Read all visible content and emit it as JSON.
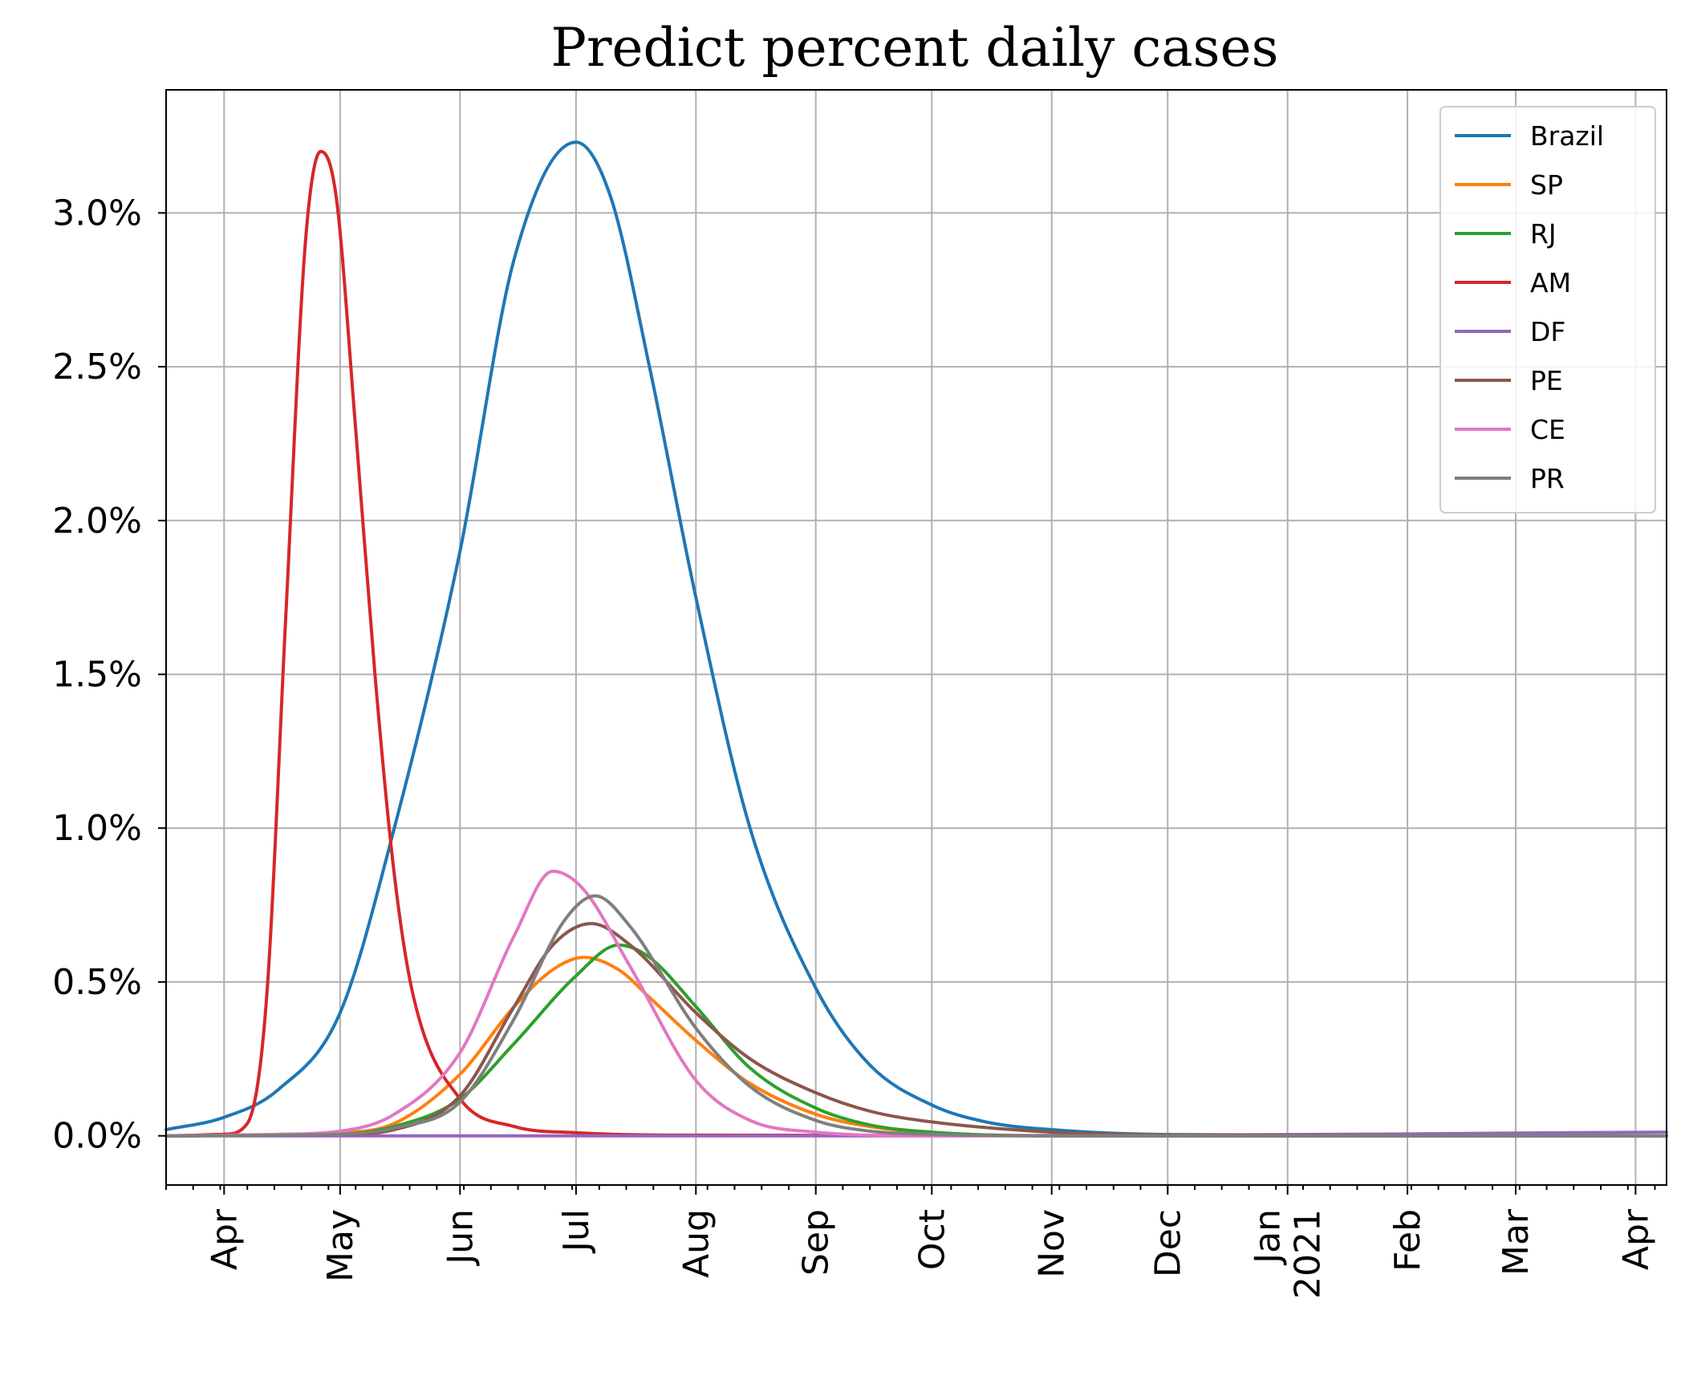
{
  "chart_data": {
    "type": "line",
    "title": "Predict percent daily cases",
    "xlabel": "",
    "ylabel": "",
    "x_axis": {
      "type": "date",
      "range": [
        "2020-03-17",
        "2021-04-09"
      ],
      "ticks": [
        {
          "date": "2020-04-01",
          "label": "Apr"
        },
        {
          "date": "2020-05-01",
          "label": "May"
        },
        {
          "date": "2020-06-01",
          "label": "Jun"
        },
        {
          "date": "2020-07-01",
          "label": "Jul"
        },
        {
          "date": "2020-08-01",
          "label": "Aug"
        },
        {
          "date": "2020-09-01",
          "label": "Sep"
        },
        {
          "date": "2020-10-01",
          "label": "Oct"
        },
        {
          "date": "2020-11-01",
          "label": "Nov"
        },
        {
          "date": "2020-12-01",
          "label": "Dec"
        },
        {
          "date": "2021-01-01",
          "label": "Jan\n2021"
        },
        {
          "date": "2021-02-01",
          "label": "Feb"
        },
        {
          "date": "2021-03-01",
          "label": "Mar"
        },
        {
          "date": "2021-04-01",
          "label": "Apr"
        }
      ]
    },
    "y_axis": {
      "range": [
        -0.16,
        3.4
      ],
      "ticks": [
        0.0,
        0.5,
        1.0,
        1.5,
        2.0,
        2.5,
        3.0
      ],
      "tick_labels": [
        "0.0%",
        "0.5%",
        "1.0%",
        "1.5%",
        "2.0%",
        "2.5%",
        "3.0%"
      ]
    },
    "grid": true,
    "legend": "top-right",
    "series": [
      {
        "name": "Brazil",
        "color": "#1f77b4",
        "points": [
          [
            "2020-03-17",
            0.02
          ],
          [
            "2020-04-01",
            0.06
          ],
          [
            "2020-04-15",
            0.15
          ],
          [
            "2020-05-01",
            0.4
          ],
          [
            "2020-05-15",
            1.0
          ],
          [
            "2020-06-01",
            1.9
          ],
          [
            "2020-06-15",
            2.85
          ],
          [
            "2020-07-01",
            3.23
          ],
          [
            "2020-07-10",
            3.05
          ],
          [
            "2020-07-20",
            2.5
          ],
          [
            "2020-08-01",
            1.75
          ],
          [
            "2020-08-15",
            1.0
          ],
          [
            "2020-09-01",
            0.48
          ],
          [
            "2020-09-15",
            0.23
          ],
          [
            "2020-10-01",
            0.1
          ],
          [
            "2020-10-15",
            0.045
          ],
          [
            "2020-11-01",
            0.02
          ],
          [
            "2020-12-01",
            0.004
          ],
          [
            "2021-04-09",
            0.0
          ]
        ]
      },
      {
        "name": "SP",
        "color": "#ff7f0e",
        "points": [
          [
            "2020-03-17",
            0.0
          ],
          [
            "2020-05-01",
            0.01
          ],
          [
            "2020-05-15",
            0.04
          ],
          [
            "2020-06-01",
            0.2
          ],
          [
            "2020-06-15",
            0.42
          ],
          [
            "2020-06-25",
            0.54
          ],
          [
            "2020-07-03",
            0.58
          ],
          [
            "2020-07-12",
            0.54
          ],
          [
            "2020-07-20",
            0.45
          ],
          [
            "2020-08-01",
            0.31
          ],
          [
            "2020-08-15",
            0.17
          ],
          [
            "2020-09-01",
            0.07
          ],
          [
            "2020-09-15",
            0.03
          ],
          [
            "2020-10-01",
            0.01
          ],
          [
            "2020-11-01",
            0.0
          ],
          [
            "2021-04-09",
            0.0
          ]
        ]
      },
      {
        "name": "RJ",
        "color": "#2ca02c",
        "points": [
          [
            "2020-03-17",
            0.0
          ],
          [
            "2020-05-01",
            0.005
          ],
          [
            "2020-05-15",
            0.03
          ],
          [
            "2020-06-01",
            0.12
          ],
          [
            "2020-06-15",
            0.3
          ],
          [
            "2020-07-01",
            0.52
          ],
          [
            "2020-07-12",
            0.62
          ],
          [
            "2020-07-20",
            0.58
          ],
          [
            "2020-08-01",
            0.42
          ],
          [
            "2020-08-15",
            0.22
          ],
          [
            "2020-09-01",
            0.09
          ],
          [
            "2020-09-15",
            0.035
          ],
          [
            "2020-10-01",
            0.012
          ],
          [
            "2020-11-01",
            0.0
          ],
          [
            "2021-04-09",
            0.0
          ]
        ]
      },
      {
        "name": "AM",
        "color": "#d62728",
        "points": [
          [
            "2020-03-17",
            0.0
          ],
          [
            "2020-04-01",
            0.005
          ],
          [
            "2020-04-07",
            0.04
          ],
          [
            "2020-04-12",
            0.45
          ],
          [
            "2020-04-17",
            1.7
          ],
          [
            "2020-04-22",
            2.9
          ],
          [
            "2020-04-26",
            3.2
          ],
          [
            "2020-04-30",
            3.05
          ],
          [
            "2020-05-05",
            2.3
          ],
          [
            "2020-05-10",
            1.5
          ],
          [
            "2020-05-15",
            0.85
          ],
          [
            "2020-05-20",
            0.45
          ],
          [
            "2020-06-01",
            0.12
          ],
          [
            "2020-06-15",
            0.03
          ],
          [
            "2020-07-01",
            0.01
          ],
          [
            "2020-08-01",
            0.002
          ],
          [
            "2021-04-09",
            0.0
          ]
        ]
      },
      {
        "name": "DF",
        "color": "#9467bd",
        "points": [
          [
            "2020-03-17",
            0.0
          ],
          [
            "2020-10-01",
            0.0
          ],
          [
            "2020-12-01",
            0.002
          ],
          [
            "2021-01-01",
            0.004
          ],
          [
            "2021-02-01",
            0.006
          ],
          [
            "2021-03-01",
            0.009
          ],
          [
            "2021-04-09",
            0.012
          ]
        ]
      },
      {
        "name": "PE",
        "color": "#8c564b",
        "points": [
          [
            "2020-03-17",
            0.0
          ],
          [
            "2020-05-01",
            0.005
          ],
          [
            "2020-05-15",
            0.02
          ],
          [
            "2020-06-01",
            0.13
          ],
          [
            "2020-06-15",
            0.42
          ],
          [
            "2020-06-25",
            0.62
          ],
          [
            "2020-07-05",
            0.69
          ],
          [
            "2020-07-15",
            0.62
          ],
          [
            "2020-08-01",
            0.4
          ],
          [
            "2020-08-15",
            0.25
          ],
          [
            "2020-09-01",
            0.14
          ],
          [
            "2020-09-15",
            0.08
          ],
          [
            "2020-10-01",
            0.045
          ],
          [
            "2020-11-01",
            0.012
          ],
          [
            "2020-12-01",
            0.003
          ],
          [
            "2021-04-09",
            0.0
          ]
        ]
      },
      {
        "name": "CE",
        "color": "#e377c2",
        "points": [
          [
            "2020-03-17",
            0.0
          ],
          [
            "2020-04-15",
            0.005
          ],
          [
            "2020-05-01",
            0.015
          ],
          [
            "2020-05-15",
            0.07
          ],
          [
            "2020-06-01",
            0.27
          ],
          [
            "2020-06-15",
            0.65
          ],
          [
            "2020-06-25",
            0.86
          ],
          [
            "2020-07-03",
            0.8
          ],
          [
            "2020-07-15",
            0.55
          ],
          [
            "2020-08-01",
            0.18
          ],
          [
            "2020-08-15",
            0.05
          ],
          [
            "2020-09-01",
            0.012
          ],
          [
            "2020-10-01",
            0.0
          ],
          [
            "2021-04-09",
            0.0
          ]
        ]
      },
      {
        "name": "PR",
        "color": "#7f7f7f",
        "points": [
          [
            "2020-03-17",
            0.0
          ],
          [
            "2020-05-01",
            0.005
          ],
          [
            "2020-05-15",
            0.025
          ],
          [
            "2020-06-01",
            0.11
          ],
          [
            "2020-06-15",
            0.38
          ],
          [
            "2020-06-28",
            0.7
          ],
          [
            "2020-07-06",
            0.78
          ],
          [
            "2020-07-15",
            0.68
          ],
          [
            "2020-08-01",
            0.35
          ],
          [
            "2020-08-15",
            0.16
          ],
          [
            "2020-09-01",
            0.05
          ],
          [
            "2020-09-15",
            0.015
          ],
          [
            "2020-10-01",
            0.005
          ],
          [
            "2020-11-01",
            0.0
          ],
          [
            "2021-04-09",
            0.0
          ]
        ]
      }
    ]
  }
}
